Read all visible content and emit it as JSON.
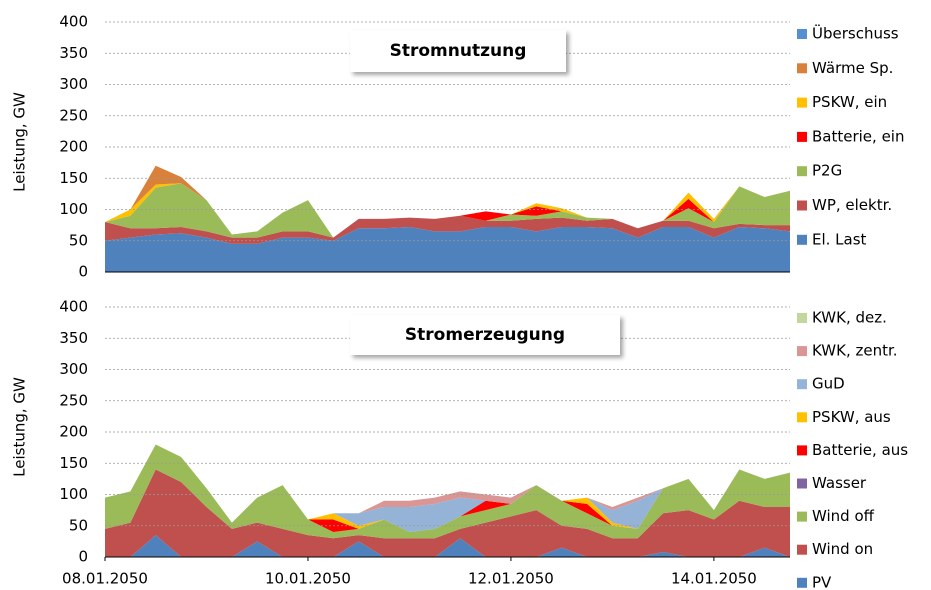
{
  "chart_data": [
    {
      "type": "stacked-area",
      "title": "Stromnutzung",
      "ylabel": "Leistung, GW",
      "ylim": [
        0,
        400
      ],
      "yticks": [
        0,
        50,
        100,
        150,
        200,
        250,
        300,
        350,
        400
      ],
      "grid": true,
      "legend": "right",
      "series": [
        {
          "name": "El. Last",
          "color": "#4f81bd",
          "values": [
            50,
            55,
            60,
            62,
            55,
            45,
            45,
            55,
            55,
            50,
            70,
            70,
            72,
            65,
            65,
            72,
            72,
            65,
            72,
            72,
            70,
            55,
            72,
            72,
            55,
            72,
            70,
            65
          ]
        },
        {
          "name": "WP, elektr.",
          "color": "#c0504d",
          "values": [
            30,
            15,
            10,
            10,
            10,
            10,
            10,
            10,
            10,
            5,
            15,
            15,
            15,
            20,
            25,
            10,
            10,
            20,
            15,
            10,
            15,
            15,
            10,
            10,
            15,
            5,
            5,
            10
          ]
        },
        {
          "name": "P2G",
          "color": "#9bbb59",
          "values": [
            0,
            20,
            65,
            70,
            50,
            5,
            10,
            30,
            50,
            0,
            0,
            0,
            0,
            0,
            0,
            0,
            10,
            5,
            10,
            5,
            0,
            0,
            0,
            20,
            10,
            60,
            45,
            55
          ]
        },
        {
          "name": "Batterie, ein",
          "color": "#ff0000",
          "values": [
            0,
            0,
            0,
            0,
            0,
            0,
            0,
            0,
            0,
            0,
            0,
            0,
            0,
            0,
            0,
            15,
            0,
            15,
            0,
            0,
            0,
            0,
            0,
            15,
            0,
            0,
            0,
            0
          ]
        },
        {
          "name": "PSKW, ein",
          "color": "#ffc000",
          "values": [
            0,
            10,
            5,
            0,
            0,
            0,
            0,
            0,
            0,
            0,
            0,
            0,
            0,
            0,
            0,
            0,
            0,
            5,
            5,
            0,
            0,
            0,
            0,
            10,
            5,
            0,
            0,
            0
          ]
        },
        {
          "name": "Wärme Sp.",
          "color": "#d9813a",
          "values": [
            0,
            0,
            30,
            10,
            0,
            0,
            0,
            0,
            0,
            0,
            0,
            0,
            0,
            0,
            0,
            0,
            0,
            0,
            0,
            0,
            0,
            0,
            0,
            0,
            0,
            0,
            0,
            0
          ]
        },
        {
          "name": "Überschuss",
          "color": "#558ed5",
          "values": [
            0,
            0,
            0,
            0,
            0,
            0,
            0,
            0,
            0,
            0,
            0,
            0,
            0,
            0,
            0,
            0,
            0,
            0,
            0,
            0,
            0,
            0,
            0,
            0,
            0,
            0,
            0,
            0
          ]
        }
      ]
    },
    {
      "type": "stacked-area",
      "title": "Stromerzeugung",
      "ylabel": "Leistung, GW",
      "ylim": [
        0,
        400
      ],
      "yticks": [
        0,
        50,
        100,
        150,
        200,
        250,
        300,
        350,
        400
      ],
      "grid": true,
      "legend": "right",
      "categories": [
        "08.01.2050",
        null,
        null,
        null,
        null,
        null,
        null,
        null,
        "10.01.2050",
        null,
        null,
        null,
        null,
        null,
        null,
        null,
        "12.01.2050",
        null,
        null,
        null,
        null,
        null,
        null,
        null,
        "14.01.2050",
        null,
        null,
        null
      ],
      "series": [
        {
          "name": "PV",
          "color": "#4f81bd",
          "values": [
            0,
            0,
            35,
            0,
            0,
            0,
            25,
            0,
            0,
            0,
            25,
            0,
            0,
            0,
            30,
            0,
            0,
            0,
            15,
            0,
            0,
            0,
            8,
            0,
            0,
            0,
            15,
            0
          ]
        },
        {
          "name": "Wind on",
          "color": "#c0504d",
          "values": [
            45,
            55,
            105,
            120,
            80,
            45,
            30,
            45,
            35,
            30,
            10,
            30,
            30,
            30,
            15,
            55,
            65,
            75,
            35,
            45,
            30,
            30,
            62,
            75,
            60,
            90,
            65,
            80
          ]
        },
        {
          "name": "Wind off",
          "color": "#9bbb59",
          "values": [
            50,
            50,
            40,
            40,
            30,
            10,
            40,
            70,
            25,
            10,
            10,
            30,
            10,
            15,
            20,
            20,
            20,
            40,
            40,
            25,
            20,
            15,
            40,
            50,
            15,
            50,
            45,
            55
          ]
        },
        {
          "name": "Wasser",
          "color": "#8064a2",
          "values": [
            0,
            0,
            0,
            0,
            0,
            0,
            0,
            0,
            0,
            0,
            0,
            0,
            0,
            0,
            0,
            0,
            0,
            0,
            0,
            0,
            0,
            0,
            0,
            0,
            0,
            0,
            0,
            0
          ]
        },
        {
          "name": "Batterie, aus",
          "color": "#ff0000",
          "values": [
            0,
            0,
            0,
            0,
            0,
            0,
            0,
            0,
            0,
            20,
            0,
            0,
            0,
            0,
            0,
            15,
            0,
            0,
            0,
            15,
            0,
            0,
            0,
            0,
            0,
            0,
            0,
            0
          ]
        },
        {
          "name": "PSKW, aus",
          "color": "#ffc000",
          "values": [
            0,
            0,
            0,
            0,
            0,
            0,
            0,
            0,
            0,
            10,
            5,
            0,
            0,
            0,
            0,
            0,
            0,
            0,
            0,
            10,
            5,
            0,
            0,
            0,
            0,
            0,
            0,
            0
          ]
        },
        {
          "name": "GuD",
          "color": "#95b3d7",
          "values": [
            0,
            0,
            0,
            0,
            0,
            0,
            0,
            0,
            0,
            0,
            20,
            20,
            40,
            40,
            30,
            0,
            0,
            0,
            0,
            0,
            20,
            45,
            0,
            0,
            0,
            0,
            0,
            0
          ]
        },
        {
          "name": "KWK, zentr.",
          "color": "#d99694",
          "values": [
            0,
            0,
            0,
            0,
            0,
            0,
            0,
            0,
            0,
            0,
            0,
            10,
            10,
            10,
            10,
            10,
            10,
            0,
            0,
            0,
            5,
            5,
            0,
            0,
            0,
            0,
            0,
            0
          ]
        },
        {
          "name": "KWK, dez.",
          "color": "#c3d69b",
          "values": [
            0,
            0,
            0,
            0,
            0,
            0,
            0,
            0,
            0,
            0,
            0,
            0,
            0,
            0,
            0,
            0,
            0,
            0,
            0,
            0,
            0,
            0,
            0,
            0,
            0,
            0,
            0,
            0
          ]
        }
      ]
    }
  ]
}
